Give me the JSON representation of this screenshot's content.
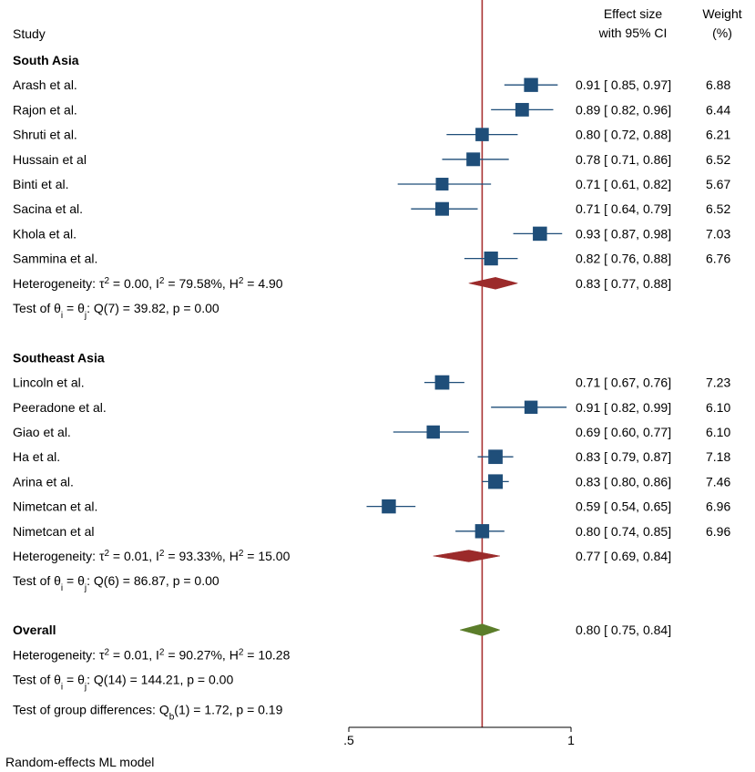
{
  "chart_data": {
    "type": "forest",
    "model_note": "Random-effects ML model",
    "columns": {
      "study": "Study",
      "effect_line1": "Effect size",
      "effect_line2": "with 95% CI",
      "weight_line1": "Weight",
      "weight_line2": "(%)"
    },
    "xlim": [
      0.5,
      1.0
    ],
    "ticks": [
      {
        "value": 0.5,
        "label": ".5"
      },
      {
        "value": 1.0,
        "label": "1"
      }
    ],
    "reference_line": 0.8,
    "colors": {
      "study": "#1f4e79",
      "subgroup_diamond": "#9b2a2a",
      "overall_diamond": "#5b7d2a",
      "ref_line": "#a83232",
      "ci_line": "#1f4e79"
    },
    "groups": [
      {
        "name": "South Asia",
        "studies": [
          {
            "study": "Arash et al.",
            "es": 0.91,
            "lo": 0.85,
            "hi": 0.97,
            "ci_text": "0.91 [ 0.85,  0.97]",
            "weight": 6.88,
            "weight_text": "6.88"
          },
          {
            "study": "Rajon et al.",
            "es": 0.89,
            "lo": 0.82,
            "hi": 0.96,
            "ci_text": "0.89 [ 0.82,  0.96]",
            "weight": 6.44,
            "weight_text": "6.44"
          },
          {
            "study": "Shruti et al.",
            "es": 0.8,
            "lo": 0.72,
            "hi": 0.88,
            "ci_text": "0.80 [ 0.72,  0.88]",
            "weight": 6.21,
            "weight_text": "6.21"
          },
          {
            "study": "Hussain et al",
            "es": 0.78,
            "lo": 0.71,
            "hi": 0.86,
            "ci_text": "0.78 [ 0.71,  0.86]",
            "weight": 6.52,
            "weight_text": "6.52"
          },
          {
            "study": "Binti et al.",
            "es": 0.71,
            "lo": 0.61,
            "hi": 0.82,
            "ci_text": "0.71 [ 0.61,  0.82]",
            "weight": 5.67,
            "weight_text": "5.67"
          },
          {
            "study": "Sacina et al.",
            "es": 0.71,
            "lo": 0.64,
            "hi": 0.79,
            "ci_text": "0.71 [ 0.64,  0.79]",
            "weight": 6.52,
            "weight_text": "6.52"
          },
          {
            "study": "Khola et al.",
            "es": 0.93,
            "lo": 0.87,
            "hi": 0.98,
            "ci_text": "0.93 [ 0.87,  0.98]",
            "weight": 7.03,
            "weight_text": "7.03"
          },
          {
            "study": "Sammina et al.",
            "es": 0.82,
            "lo": 0.76,
            "hi": 0.88,
            "ci_text": "0.82 [ 0.76,  0.88]",
            "weight": 6.76,
            "weight_text": "6.76"
          }
        ],
        "summary": {
          "es": 0.83,
          "lo": 0.77,
          "hi": 0.88,
          "ci_text": "0.83 [ 0.77,  0.88]"
        },
        "heterogeneity": {
          "prefix": "Heterogeneity: τ",
          "sup1": "2",
          "mid1": " = 0.00, I",
          "sup2": "2",
          "mid2": " = 79.58%, H",
          "sup3": "2",
          "suffix": " = 4.90"
        },
        "test": {
          "prefix": "Test of θ",
          "sub1": "i",
          "mid": " = θ",
          "sub2": "j",
          "suffix": ": Q(7) = 39.82, p = 0.00"
        }
      },
      {
        "name": "Southeast Asia",
        "studies": [
          {
            "study": "Lincoln et al.",
            "es": 0.71,
            "lo": 0.67,
            "hi": 0.76,
            "ci_text": "0.71 [ 0.67,  0.76]",
            "weight": 7.23,
            "weight_text": "7.23"
          },
          {
            "study": "Peeradone et al.",
            "es": 0.91,
            "lo": 0.82,
            "hi": 0.99,
            "ci_text": "0.91 [ 0.82,  0.99]",
            "weight": 6.1,
            "weight_text": "6.10"
          },
          {
            "study": "Giao et al.",
            "es": 0.69,
            "lo": 0.6,
            "hi": 0.77,
            "ci_text": "0.69 [ 0.60,  0.77]",
            "weight": 6.1,
            "weight_text": "6.10"
          },
          {
            "study": "Ha et al.",
            "es": 0.83,
            "lo": 0.79,
            "hi": 0.87,
            "ci_text": "0.83 [ 0.79,  0.87]",
            "weight": 7.18,
            "weight_text": "7.18"
          },
          {
            "study": "Arina et al.",
            "es": 0.83,
            "lo": 0.8,
            "hi": 0.86,
            "ci_text": "0.83 [ 0.80,  0.86]",
            "weight": 7.46,
            "weight_text": "7.46"
          },
          {
            "study": "Nimetcan et al.",
            "es": 0.59,
            "lo": 0.54,
            "hi": 0.65,
            "ci_text": "0.59 [ 0.54,  0.65]",
            "weight": 6.96,
            "weight_text": "6.96"
          },
          {
            "study": "Nimetcan et al",
            "es": 0.8,
            "lo": 0.74,
            "hi": 0.85,
            "ci_text": "0.80 [ 0.74,  0.85]",
            "weight": 6.96,
            "weight_text": "6.96"
          }
        ],
        "summary": {
          "es": 0.77,
          "lo": 0.69,
          "hi": 0.84,
          "ci_text": "0.77 [ 0.69,  0.84]"
        },
        "heterogeneity": {
          "prefix": "Heterogeneity: τ",
          "sup1": "2",
          "mid1": " = 0.01, I",
          "sup2": "2",
          "mid2": " = 93.33%, H",
          "sup3": "2",
          "suffix": " = 15.00"
        },
        "test": {
          "prefix": "Test of θ",
          "sub1": "i",
          "mid": " = θ",
          "sub2": "j",
          "suffix": ": Q(6) = 86.87, p = 0.00"
        }
      }
    ],
    "overall": {
      "label": "Overall",
      "es": 0.8,
      "lo": 0.75,
      "hi": 0.84,
      "ci_text": "0.80 [ 0.75,  0.84]",
      "heterogeneity": {
        "prefix": "Heterogeneity: τ",
        "sup1": "2",
        "mid1": " = 0.01, I",
        "sup2": "2",
        "mid2": " = 90.27%, H",
        "sup3": "2",
        "suffix": " = 10.28"
      },
      "test": {
        "prefix": "Test of θ",
        "sub1": "i",
        "mid": " = θ",
        "sub2": "j",
        "suffix": ": Q(14) = 144.21, p = 0.00"
      },
      "group_test": {
        "prefix": "Test of group differences: Q",
        "sub": "b",
        "suffix": "(1) = 1.72, p = 0.19"
      }
    }
  }
}
